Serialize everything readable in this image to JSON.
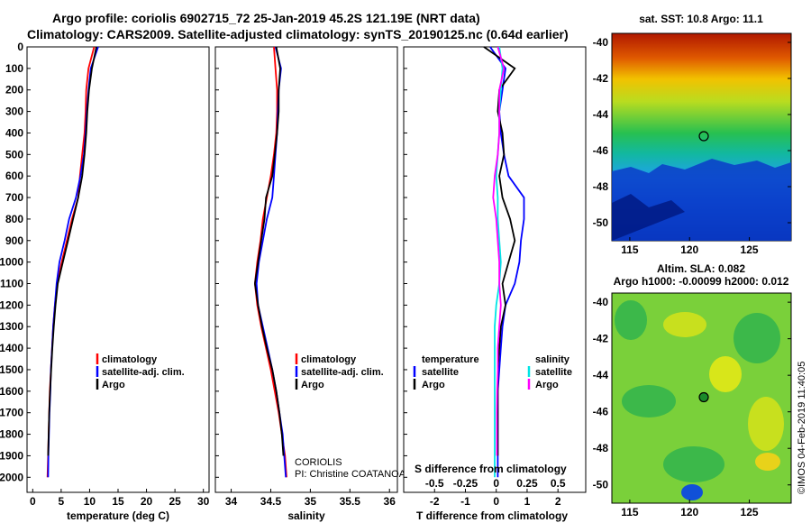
{
  "title_line1": "Argo profile: coriolis 6902715_72 25-Jan-2019 45.2S 121.19E (NRT data)",
  "title_line2": "Climatology: CARS2009. Satellite-adjusted climatology: synTS_20190125.nc (0.64d earlier)",
  "colors": {
    "climatology": "#ff0000",
    "satellite": "#0000ff",
    "argo": "#000000",
    "sat_salinity": "#00e5e5",
    "argo_salinity": "#ff00ff"
  },
  "chart_data": [
    {
      "type": "line",
      "name": "temperature",
      "xlabel": "temperature (deg C)",
      "xlim": [
        -1,
        31
      ],
      "ylim": [
        2070,
        0
      ],
      "x_ticks": [
        0,
        5,
        10,
        15,
        20,
        25,
        30
      ],
      "y_ticks": [
        0,
        100,
        200,
        300,
        400,
        500,
        600,
        700,
        800,
        900,
        1000,
        1100,
        1200,
        1300,
        1400,
        1500,
        1600,
        1700,
        1800,
        1900,
        2000
      ],
      "legend": [
        "climatology",
        "satellite-adj. clim.",
        "Argo"
      ],
      "series": [
        {
          "name": "climatology",
          "color": "#ff0000",
          "x": [
            10.8,
            9.8,
            9.4,
            9.3,
            9.1,
            8.7,
            8.3,
            8.0,
            6.9,
            6.0,
            5.1,
            4.3,
            3.9,
            3.6,
            3.4,
            3.2,
            3.0,
            2.9,
            2.8,
            2.7,
            2.6
          ],
          "y": [
            0,
            100,
            200,
            300,
            400,
            500,
            600,
            700,
            800,
            900,
            1000,
            1100,
            1200,
            1300,
            1400,
            1500,
            1600,
            1700,
            1800,
            1900,
            2000
          ]
        },
        {
          "name": "satellite-adj. clim.",
          "color": "#0000ff",
          "x": [
            11.5,
            10.2,
            9.8,
            9.5,
            9.3,
            9.0,
            8.4,
            7.6,
            6.4,
            5.6,
            4.7,
            4.2,
            3.9,
            3.6,
            3.4,
            3.2,
            3.1,
            2.95,
            2.85,
            2.75,
            2.7
          ],
          "y": [
            0,
            100,
            200,
            300,
            400,
            500,
            600,
            700,
            800,
            900,
            1000,
            1100,
            1200,
            1300,
            1400,
            1500,
            1600,
            1700,
            1800,
            1900,
            2000
          ]
        },
        {
          "name": "Argo",
          "color": "#000000",
          "x": [
            11.2,
            10.4,
            9.9,
            9.6,
            9.4,
            9.1,
            8.7,
            8.0,
            7.1,
            6.2,
            5.3,
            4.4,
            4.0,
            3.7,
            3.45,
            3.25,
            3.05,
            2.9,
            2.8,
            2.7
          ],
          "y": [
            0,
            100,
            200,
            300,
            400,
            500,
            600,
            700,
            800,
            900,
            1000,
            1100,
            1200,
            1300,
            1400,
            1500,
            1600,
            1700,
            1800,
            1900
          ]
        }
      ]
    },
    {
      "type": "line",
      "name": "salinity",
      "xlabel": "salinity",
      "xlim": [
        33.8,
        36.1
      ],
      "ylim": [
        2070,
        0
      ],
      "x_ticks": [
        34,
        34.5,
        35,
        35.5,
        36
      ],
      "legend": [
        "climatology",
        "satellite-adj. clim.",
        "Argo"
      ],
      "annotation": [
        "CORIOLIS",
        "PI: Christine COATANOAN"
      ],
      "series": [
        {
          "name": "climatology",
          "color": "#ff0000",
          "x": [
            34.54,
            34.56,
            34.58,
            34.58,
            34.57,
            34.54,
            34.5,
            34.45,
            34.4,
            34.37,
            34.33,
            34.3,
            34.33,
            34.38,
            34.44,
            34.5,
            34.55,
            34.6,
            34.64,
            34.68,
            34.7
          ],
          "y": [
            0,
            100,
            200,
            300,
            400,
            500,
            600,
            700,
            800,
            900,
            1000,
            1100,
            1200,
            1300,
            1400,
            1500,
            1600,
            1700,
            1800,
            1900,
            2000
          ]
        },
        {
          "name": "satellite-adj. clim.",
          "color": "#0000ff",
          "x": [
            34.56,
            34.63,
            34.6,
            34.59,
            34.58,
            34.56,
            34.54,
            34.52,
            34.45,
            34.4,
            34.35,
            34.32,
            34.34,
            34.4,
            34.46,
            34.52,
            34.57,
            34.61,
            34.65,
            34.67,
            34.69
          ],
          "y": [
            0,
            100,
            200,
            300,
            400,
            500,
            600,
            700,
            800,
            900,
            1000,
            1100,
            1200,
            1300,
            1400,
            1500,
            1600,
            1700,
            1800,
            1900,
            2000
          ]
        },
        {
          "name": "Argo",
          "color": "#000000",
          "x": [
            34.57,
            34.62,
            34.6,
            34.6,
            34.58,
            34.55,
            34.52,
            34.44,
            34.42,
            34.38,
            34.34,
            34.3,
            34.34,
            34.39,
            34.45,
            34.52,
            34.57,
            34.61,
            34.64,
            34.66
          ],
          "y": [
            0,
            100,
            200,
            300,
            400,
            500,
            600,
            700,
            800,
            900,
            1000,
            1100,
            1200,
            1300,
            1400,
            1500,
            1600,
            1700,
            1800,
            1900
          ]
        }
      ]
    },
    {
      "type": "line",
      "name": "difference",
      "xlabel": "T difference from climatology",
      "xlabel_top": "S difference from climatology",
      "xlim": [
        -3,
        2.9
      ],
      "ylim": [
        2070,
        0
      ],
      "x_ticks": [
        -2,
        -1,
        0,
        1,
        2
      ],
      "x_top_ticks": [
        "-0.5",
        "-0.25",
        "0",
        "0.25",
        "0.5"
      ],
      "legend_temperature": {
        "title": "temperature",
        "items": [
          "satellite",
          "Argo"
        ]
      },
      "legend_salinity": {
        "title": "salinity",
        "items": [
          "satellite",
          "Argo"
        ]
      },
      "series": [
        {
          "name": "T satellite",
          "color": "#0000ff",
          "x": [
            -0.2,
            0.3,
            0.2,
            0.1,
            0.15,
            0.25,
            0.4,
            0.9,
            0.9,
            0.8,
            0.75,
            0.6,
            0.3,
            0.2,
            0.15,
            0.1,
            0.05,
            0.05,
            0.05,
            0.05,
            0.05
          ],
          "y": [
            0,
            100,
            200,
            300,
            400,
            500,
            600,
            700,
            800,
            900,
            1000,
            1100,
            1200,
            1300,
            1400,
            1500,
            1600,
            1700,
            1800,
            1900,
            2000
          ]
        },
        {
          "name": "T Argo",
          "color": "#000000",
          "x": [
            -0.4,
            0.6,
            0.1,
            0.05,
            0.2,
            0.25,
            0.1,
            0.2,
            0.45,
            0.6,
            0.4,
            0.2,
            0.3,
            0.15,
            0.1,
            0.05,
            0.05,
            0.05,
            0.05,
            0.05
          ],
          "y": [
            0,
            100,
            200,
            300,
            400,
            500,
            600,
            700,
            800,
            900,
            1000,
            1100,
            1200,
            1300,
            1400,
            1500,
            1600,
            1700,
            1800,
            1900
          ]
        },
        {
          "name": "S satellite",
          "color": "#00e5e5",
          "x": [
            0.1,
            0.2,
            0.15,
            0.1,
            0.1,
            0.05,
            0.0,
            0.05,
            0.05,
            0.1,
            0.15,
            0.1,
            0.0,
            -0.05,
            -0.05,
            -0.05,
            -0.05,
            -0.05,
            -0.05,
            -0.05,
            -0.05
          ],
          "y": [
            0,
            100,
            200,
            300,
            400,
            500,
            600,
            700,
            800,
            900,
            1000,
            1100,
            1200,
            1300,
            1400,
            1500,
            1600,
            1700,
            1800,
            1900,
            2000
          ]
        },
        {
          "name": "S Argo",
          "color": "#ff00ff",
          "x": [
            0.05,
            0.25,
            0.1,
            0.1,
            0.1,
            0.05,
            -0.05,
            -0.1,
            0.0,
            0.05,
            0.1,
            0.1,
            0.15,
            0.1,
            0.05,
            0.05,
            0.03,
            0.02,
            0.02,
            0.02
          ],
          "y": [
            0,
            100,
            200,
            300,
            400,
            500,
            600,
            700,
            800,
            900,
            1000,
            1100,
            1200,
            1300,
            1400,
            1500,
            1600,
            1700,
            1800,
            1900
          ]
        }
      ]
    },
    {
      "type": "heatmap",
      "name": "sst_map",
      "title": "sat. SST: 10.8 Argo: 11.1",
      "xlim": [
        113.5,
        128.5
      ],
      "ylim": [
        -51,
        -39.5
      ],
      "x_ticks": [
        115,
        120,
        125
      ],
      "y_ticks": [
        -40,
        -42,
        -44,
        -46,
        -48,
        -50
      ],
      "marker": {
        "lon": 121.19,
        "lat": -45.2
      }
    },
    {
      "type": "heatmap",
      "name": "sla_map",
      "title_line1": "Altim. SLA: 0.082",
      "title_line2": "Argo h1000: -0.00099 h2000: 0.012",
      "xlim": [
        113.5,
        128.5
      ],
      "ylim": [
        -51,
        -39.5
      ],
      "x_ticks": [
        115,
        120,
        125
      ],
      "y_ticks": [
        -40,
        -42,
        -44,
        -46,
        -48,
        -50
      ],
      "marker": {
        "lon": 121.19,
        "lat": -45.2
      }
    }
  ],
  "footer_stamp": "©IMOS 04-Feb-2019 11:40:05"
}
